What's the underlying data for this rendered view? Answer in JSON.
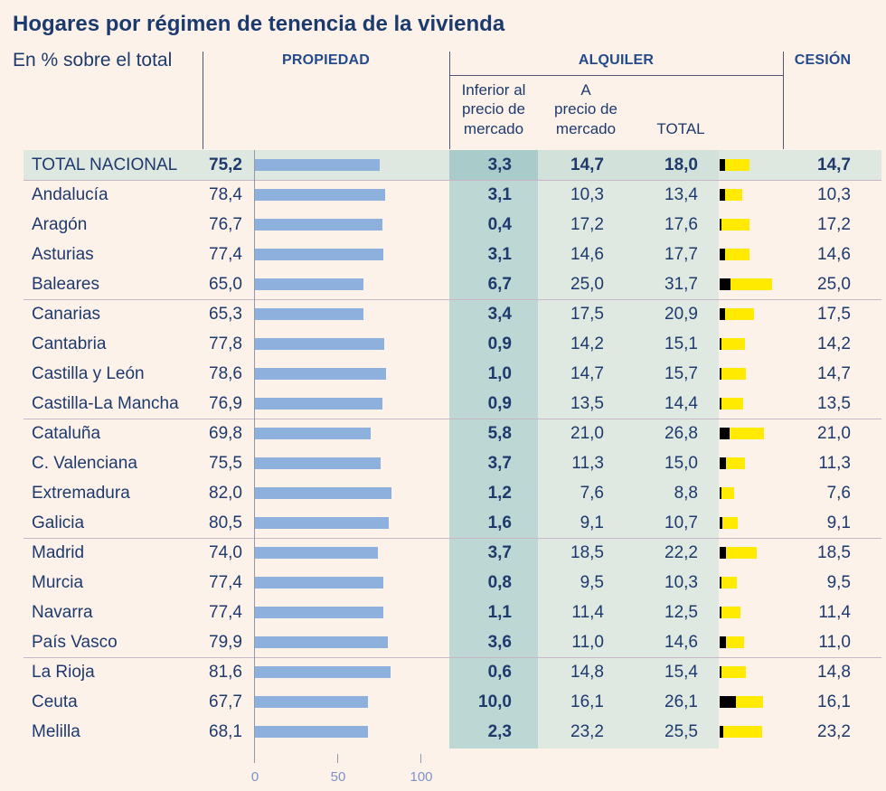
{
  "colors": {
    "background": "#fdf2ea",
    "title": "#1b3a6d",
    "text": "#1e3a6d",
    "header": "#234a8b",
    "divider": "#4d5774",
    "propiedad_bar": "#8eb0dc",
    "inferior_shade": "#bcd7d4",
    "mercado_shade": "#dfe9e2",
    "total_row": "#dfe7e1",
    "total_row_inferior": "#a9ccca",
    "total_row_mercado": "#d2e1d9",
    "separator": "#c9b7c7",
    "stack_inferior": "#000000",
    "stack_mercado": "#ffea00",
    "axis_line": "#8d99ad",
    "axis_label": "#7b93c3"
  },
  "chart_data": {
    "type": "table",
    "title": "Hogares por régimen de tenencia de la vivienda",
    "subtitle": "En % sobre el total",
    "columns": {
      "propiedad": "PROPIEDAD",
      "alquiler": "ALQUILER",
      "alquiler_inferior": [
        "Inferior al",
        "precio de",
        "mercado"
      ],
      "alquiler_a_precio": [
        "A",
        "precio de",
        "mercado"
      ],
      "alquiler_total": "TOTAL",
      "cesion": "CESIÓN"
    },
    "categories": [
      "TOTAL NACIONAL",
      "Andalucía",
      "Aragón",
      "Asturias",
      "Baleares",
      "Canarias",
      "Cantabria",
      "Castilla y León",
      "Castilla-La Mancha",
      "Cataluña",
      "C. Valenciana",
      "Extremadura",
      "Galicia",
      "Madrid",
      "Murcia",
      "Navarra",
      "País Vasco",
      "La Rioja",
      "Ceuta",
      "Melilla"
    ],
    "values": {
      "propiedad": [
        75.2,
        78.4,
        76.7,
        77.4,
        65.0,
        65.3,
        77.8,
        78.6,
        76.9,
        69.8,
        75.5,
        82.0,
        80.5,
        74.0,
        77.4,
        77.4,
        79.9,
        81.6,
        67.7,
        68.1
      ],
      "alquiler_inferior": [
        3.3,
        3.1,
        0.4,
        3.1,
        6.7,
        3.4,
        0.9,
        1.0,
        0.9,
        5.8,
        3.7,
        1.2,
        1.6,
        3.7,
        0.8,
        1.1,
        3.6,
        0.6,
        10.0,
        2.3
      ],
      "alquiler_a_precio": [
        14.7,
        10.3,
        17.2,
        14.6,
        25.0,
        17.5,
        14.2,
        14.7,
        13.5,
        21.0,
        11.3,
        7.6,
        9.1,
        18.5,
        9.5,
        11.4,
        11.0,
        14.8,
        16.1,
        23.2
      ],
      "alquiler_total": [
        18.0,
        13.4,
        17.6,
        17.7,
        31.7,
        20.9,
        15.1,
        15.7,
        14.4,
        26.8,
        15.0,
        8.8,
        10.7,
        22.2,
        10.3,
        12.5,
        14.6,
        15.4,
        26.1,
        25.5
      ],
      "cesion": [
        14.7,
        10.3,
        17.2,
        14.6,
        25.0,
        17.5,
        14.2,
        14.7,
        13.5,
        21.0,
        11.3,
        7.6,
        9.1,
        18.5,
        9.5,
        11.4,
        11.0,
        14.8,
        16.1,
        23.2
      ]
    },
    "propiedad_axis": {
      "range": [
        0,
        100
      ],
      "ticks": [
        0,
        50,
        100
      ]
    }
  }
}
